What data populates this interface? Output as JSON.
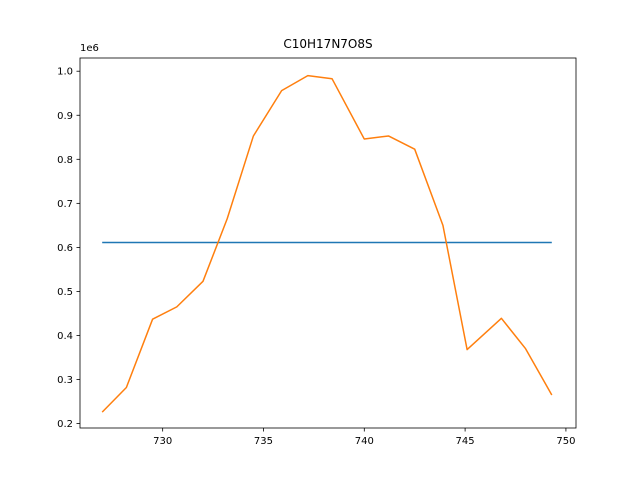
{
  "chart_data": {
    "type": "line",
    "title": "C10H17N7O8S",
    "xlabel": "",
    "ylabel": "",
    "y_offset_label": "1e6",
    "xlim": [
      725.9,
      750.5
    ],
    "ylim": [
      0.19,
      1.03
    ],
    "x_ticks": [
      730,
      735,
      740,
      745,
      750
    ],
    "x_tick_labels": [
      "730",
      "735",
      "740",
      "745",
      "750"
    ],
    "y_ticks": [
      0.2,
      0.3,
      0.4,
      0.5,
      0.6,
      0.7,
      0.8,
      0.9,
      1.0
    ],
    "y_tick_labels": [
      "0.2",
      "0.3",
      "0.4",
      "0.5",
      "0.6",
      "0.7",
      "0.8",
      "0.9",
      "1.0"
    ],
    "grid": false,
    "series": [
      {
        "color": "#1f77b4",
        "x": [
          727.0,
          749.3
        ],
        "y": [
          0.611,
          0.611
        ]
      },
      {
        "color": "#ff7f0e",
        "x": [
          727.0,
          728.2,
          729.5,
          730.7,
          732.0,
          733.2,
          734.5,
          735.9,
          737.2,
          738.4,
          740.0,
          741.2,
          742.5,
          743.9,
          745.1,
          746.8,
          748.0,
          749.3
        ],
        "y": [
          0.226,
          0.282,
          0.437,
          0.465,
          0.523,
          0.665,
          0.853,
          0.956,
          0.99,
          0.983,
          0.846,
          0.853,
          0.823,
          0.65,
          0.368,
          0.439,
          0.37,
          0.265
        ]
      }
    ]
  }
}
